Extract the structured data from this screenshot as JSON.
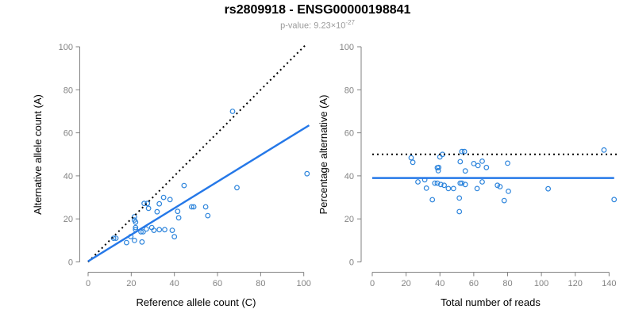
{
  "header": {
    "title": "rs2809918 - ENSG00000198841",
    "pvalue_prefix": "p-value: ",
    "pvalue_mantissa": "9.23×10",
    "pvalue_exponent": "-27"
  },
  "colors": {
    "points": "#2e85dc",
    "fit_line": "#2578e8",
    "reference_line": "#000000",
    "axis": "#828282",
    "tick_label": "#838383",
    "axis_title": "#000000",
    "title": "#000000",
    "subtitle": "#9a9a9a"
  },
  "chart_data": [
    {
      "type": "scatter",
      "name": "allele-count-scatter",
      "xlabel": "Reference allele count (C)",
      "ylabel": "Alternative allele count (A)",
      "xticks": [
        0,
        20,
        40,
        60,
        80,
        100
      ],
      "yticks": [
        0,
        20,
        40,
        60,
        80,
        100
      ],
      "xlim": [
        -4,
        105
      ],
      "ylim": [
        -4,
        105
      ],
      "grid": false,
      "points": [
        [
          67,
          70
        ],
        [
          101.5,
          41
        ],
        [
          44.5,
          35.5
        ],
        [
          69,
          34.5
        ],
        [
          35,
          30
        ],
        [
          38,
          29
        ],
        [
          26,
          27.2
        ],
        [
          27.5,
          27.2
        ],
        [
          33,
          27
        ],
        [
          48,
          25.6
        ],
        [
          49,
          25.6
        ],
        [
          54.5,
          25.6
        ],
        [
          28,
          24.9
        ],
        [
          32,
          23.3
        ],
        [
          41.5,
          23.5
        ],
        [
          55.5,
          21.5
        ],
        [
          42,
          20.5
        ],
        [
          21.5,
          21
        ],
        [
          21.5,
          19.5
        ],
        [
          22,
          18.5
        ],
        [
          22,
          16
        ],
        [
          22,
          15
        ],
        [
          27,
          15.3
        ],
        [
          29.5,
          16
        ],
        [
          24.5,
          14
        ],
        [
          25.5,
          14
        ],
        [
          30.5,
          14.7
        ],
        [
          33,
          15
        ],
        [
          35.5,
          15
        ],
        [
          39,
          14.7
        ],
        [
          40,
          11.7
        ],
        [
          19.8,
          11.8
        ],
        [
          11.8,
          11
        ],
        [
          12.9,
          11
        ],
        [
          17.8,
          9
        ],
        [
          21.5,
          10
        ],
        [
          25,
          9.3
        ]
      ],
      "lines": [
        {
          "name": "identity-line",
          "style": "dotted",
          "color": "#000000",
          "width": 2,
          "x1": 0,
          "y1": 0,
          "x2": 101,
          "y2": 101
        },
        {
          "name": "fit-line",
          "style": "solid",
          "color": "#2578e8",
          "width": 2.4,
          "x1": 0,
          "y1": 0.3,
          "x2": 102.5,
          "y2": 63.5
        }
      ]
    },
    {
      "type": "scatter",
      "name": "percentage-alternative-scatter",
      "xlabel": "Total number of reads",
      "ylabel": "Percentage alternative (A)",
      "xticks": [
        0,
        20,
        40,
        60,
        80,
        100,
        120,
        140
      ],
      "yticks": [
        0,
        20,
        40,
        60,
        80,
        100
      ],
      "xlim": [
        -6,
        149
      ],
      "ylim": [
        -4,
        105
      ],
      "grid": false,
      "points": [
        [
          23,
          48.4
        ],
        [
          24,
          46.3
        ],
        [
          40,
          48.8
        ],
        [
          41.5,
          50
        ],
        [
          53,
          51.3
        ],
        [
          54.5,
          51.3
        ],
        [
          137,
          52
        ],
        [
          52,
          46.6
        ],
        [
          39.3,
          43.9
        ],
        [
          38.5,
          43.8
        ],
        [
          39,
          42.4
        ],
        [
          55,
          42.3
        ],
        [
          60,
          45.7
        ],
        [
          62.5,
          44.8
        ],
        [
          65,
          46.8
        ],
        [
          67.5,
          43.9
        ],
        [
          80,
          45.9
        ],
        [
          31,
          38.2
        ],
        [
          27,
          37.2
        ],
        [
          32,
          34.3
        ],
        [
          37,
          36.6
        ],
        [
          38.5,
          36.6
        ],
        [
          40.5,
          36
        ],
        [
          42.5,
          35.6
        ],
        [
          45,
          34.1
        ],
        [
          48,
          34.1
        ],
        [
          52,
          36.6
        ],
        [
          53,
          36.6
        ],
        [
          55,
          36
        ],
        [
          62,
          34.1
        ],
        [
          65,
          37.2
        ],
        [
          74,
          35.6
        ],
        [
          75.5,
          35
        ],
        [
          80.5,
          32.8
        ],
        [
          104,
          34
        ],
        [
          35.5,
          28.9
        ],
        [
          51.5,
          29.7
        ],
        [
          78,
          28.5
        ],
        [
          143,
          29
        ],
        [
          51.5,
          23.4
        ]
      ],
      "lines": [
        {
          "name": "fifty-percent-line",
          "style": "dotted",
          "color": "#000000",
          "width": 2,
          "x1": 0,
          "y1": 50,
          "x2": 146,
          "y2": 50
        },
        {
          "name": "mean-percentage-line",
          "style": "solid",
          "color": "#2578e8",
          "width": 2.4,
          "x1": 0,
          "y1": 39,
          "x2": 143,
          "y2": 39
        }
      ]
    }
  ]
}
